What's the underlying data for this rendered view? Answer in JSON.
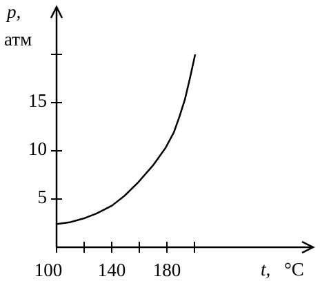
{
  "chart_data": {
    "type": "line",
    "ylabel": "p,",
    "yunit": "атм",
    "xlabel": "t,",
    "xunit": "°C",
    "x": [
      100,
      110,
      120,
      129,
      140,
      149,
      159,
      170,
      179,
      185,
      189,
      193,
      196.5,
      200.5
    ],
    "series": [
      {
        "name": "p",
        "color": "#000000",
        "values": [
          2.4,
          2.6,
          3.0,
          3.5,
          4.3,
          5.3,
          6.7,
          8.5,
          10.3,
          11.9,
          13.5,
          15.3,
          17.4,
          20
        ]
      }
    ],
    "xlim": [
      100,
      286
    ],
    "ylim": [
      0,
      24.5
    ],
    "xticks": [
      100,
      {
        "value": 120,
        "label": null
      },
      140,
      {
        "value": 160,
        "label": null
      },
      180,
      {
        "value": 200,
        "label": null
      }
    ],
    "yticks": [
      5,
      10,
      15,
      {
        "value": 20,
        "label": null
      }
    ]
  }
}
